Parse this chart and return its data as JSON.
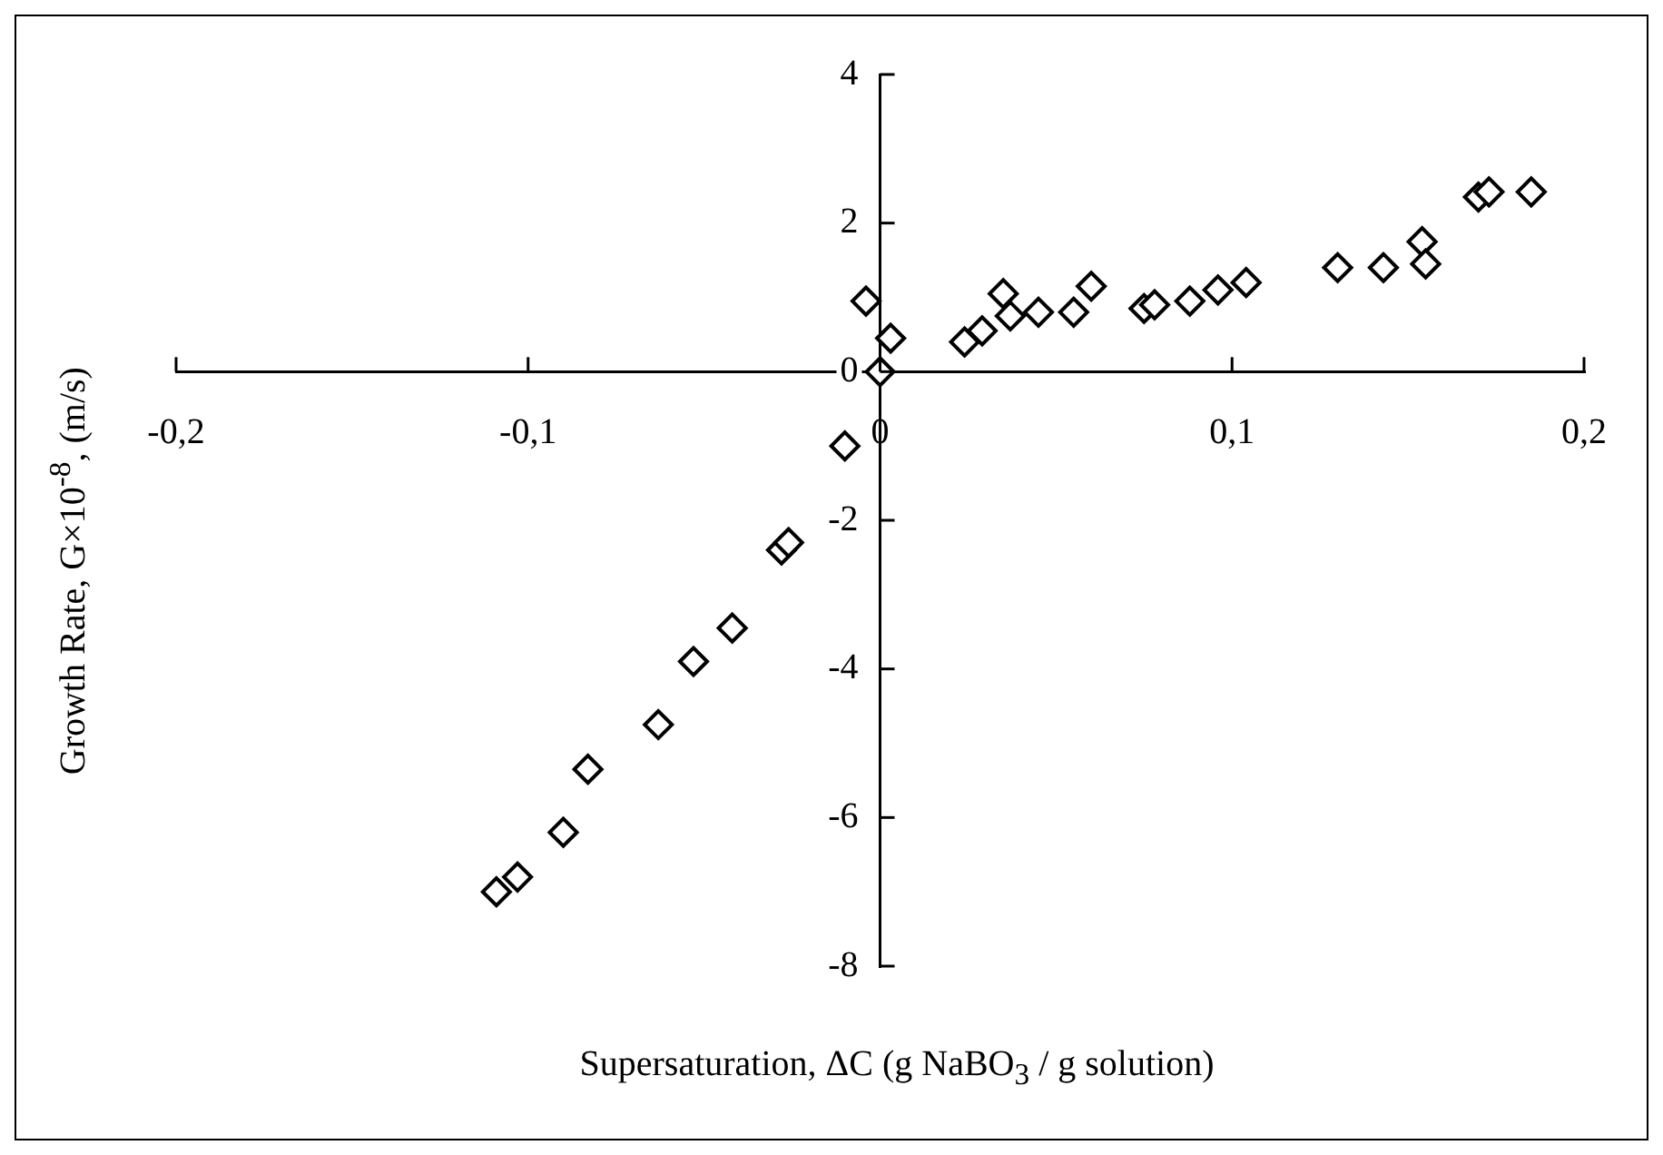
{
  "chart_data": {
    "type": "scatter",
    "xlabel": "Supersaturation, ΔC (g NaBO$_{3}$ / g solution)",
    "ylabel": "Growth Rate, G×10$^{-8}$, (m/s)",
    "x": [
      -0.109,
      -0.103,
      -0.09,
      -0.083,
      -0.063,
      -0.053,
      -0.042,
      -0.028,
      -0.026,
      -0.01,
      0,
      -0.004,
      0.003,
      0.024,
      0.029,
      0.035,
      0.037,
      0.045,
      0.055,
      0.06,
      0.075,
      0.078,
      0.088,
      0.096,
      0.104,
      0.13,
      0.143,
      0.154,
      0.155,
      0.17,
      0.173,
      0.185
    ],
    "series": [
      {
        "color": "#000000",
        "values": [
          -7.0,
          -6.8,
          -6.2,
          -5.35,
          -4.75,
          -3.9,
          -3.45,
          -2.4,
          -2.3,
          -1.0,
          0,
          0.95,
          0.45,
          0.4,
          0.55,
          1.05,
          0.75,
          0.8,
          0.8,
          1.15,
          0.85,
          0.9,
          0.95,
          1.1,
          1.2,
          1.4,
          1.4,
          1.75,
          1.45,
          2.35,
          2.42,
          2.42
        ]
      }
    ],
    "xlim": [
      -0.2,
      0.2
    ],
    "xticks": [
      {
        "value": -0.2,
        "label": "-0,2"
      },
      {
        "value": -0.1,
        "label": "-0,1"
      },
      0,
      {
        "value": 0.1,
        "label": "0,1"
      },
      {
        "value": 0.2,
        "label": "0,2"
      }
    ],
    "ylim": [
      -8,
      4
    ],
    "yticks": [
      -8,
      -6,
      -4,
      -2,
      0,
      2,
      4
    ],
    "grid": false,
    "legend": false,
    "marker": "diamond"
  }
}
